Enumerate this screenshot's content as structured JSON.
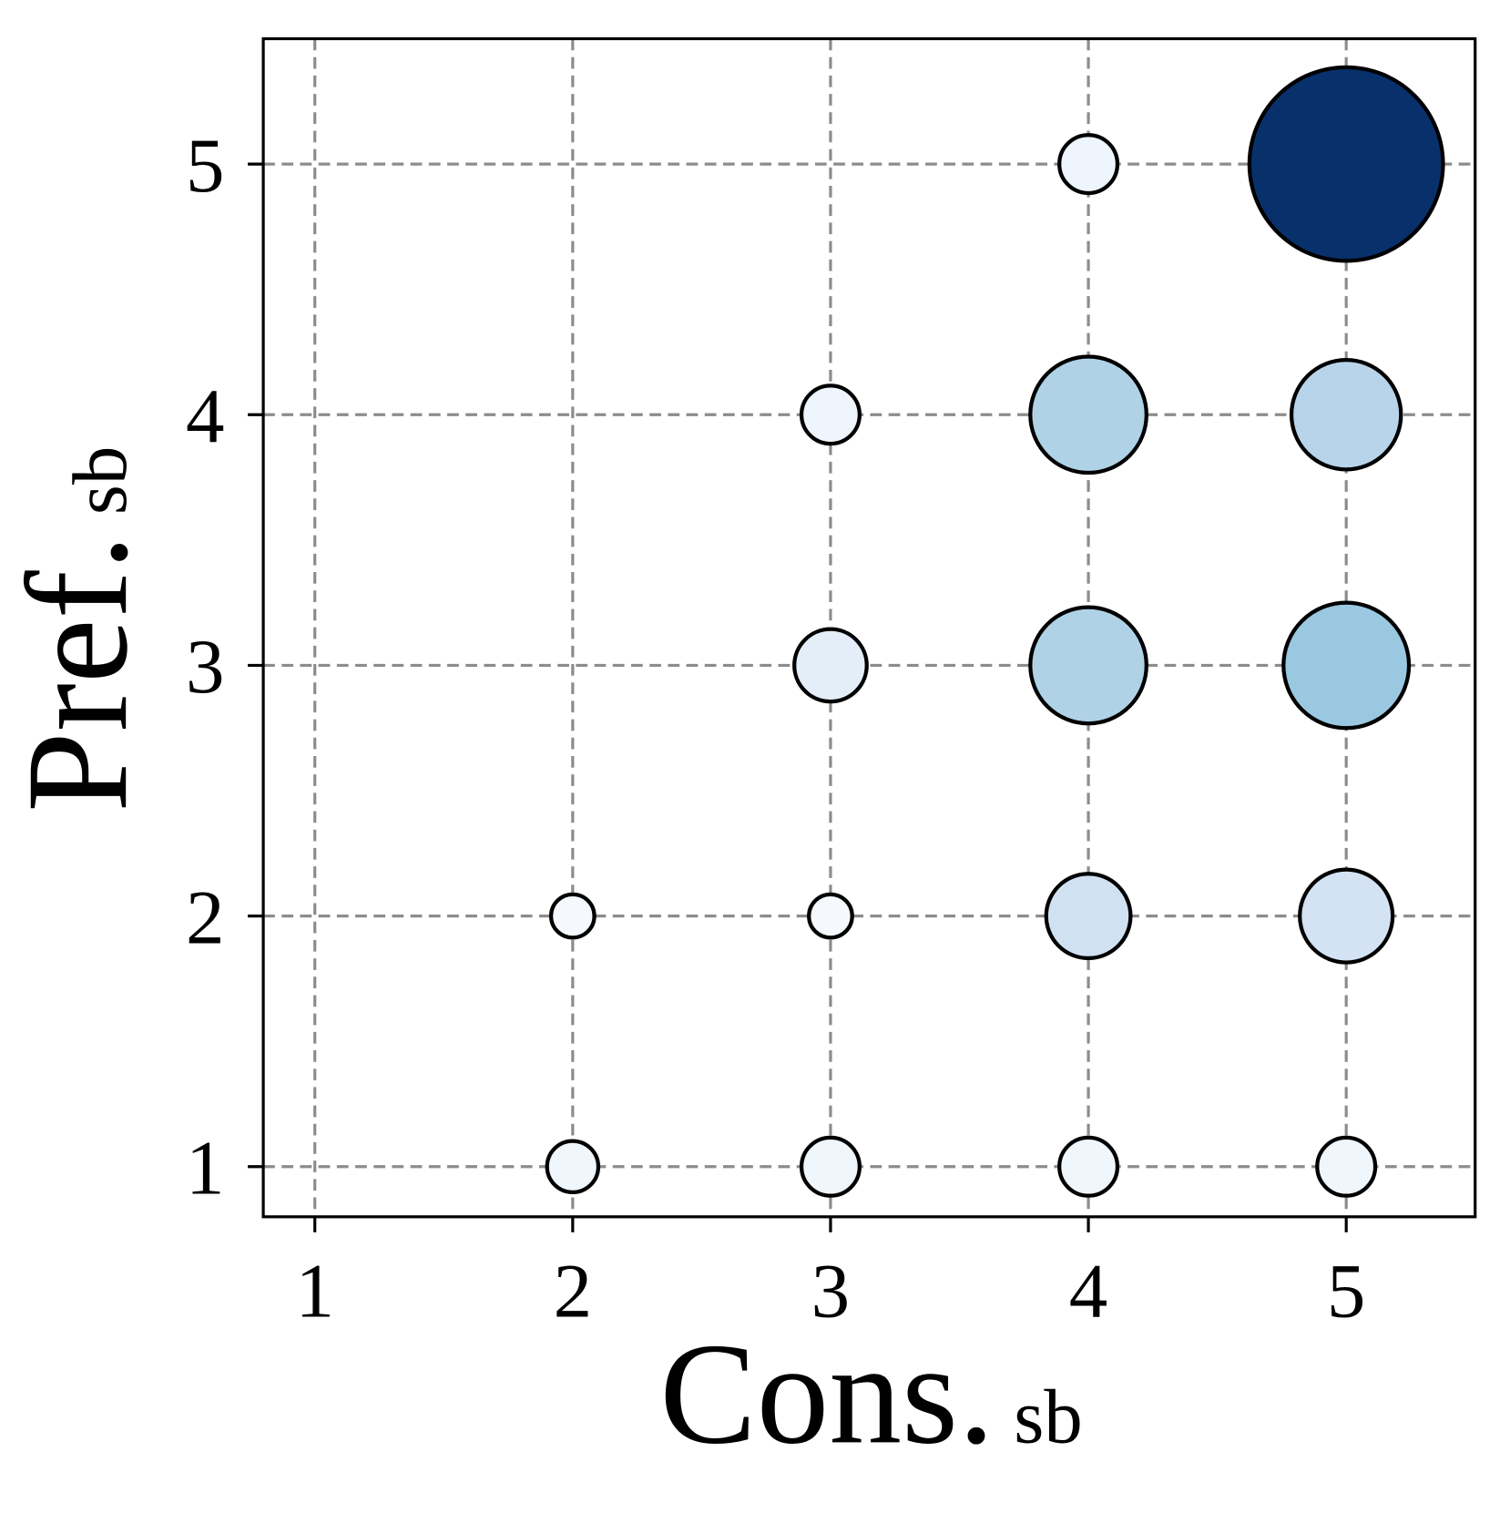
{
  "chart_data": {
    "type": "scatter",
    "x": [
      4,
      5,
      3,
      4,
      5,
      3,
      4,
      5,
      2,
      3,
      4,
      5,
      2,
      3,
      4,
      5
    ],
    "y": [
      5,
      5,
      4,
      4,
      4,
      3,
      3,
      3,
      2,
      2,
      2,
      2,
      1,
      1,
      1,
      1
    ],
    "sizes": [
      9,
      100,
      9,
      36,
      32,
      14,
      36,
      42,
      5,
      5,
      19,
      23,
      7,
      9,
      9,
      9
    ],
    "colors": [
      "#eef5fc",
      "#08306b",
      "#eef5fc",
      "#b0d2e7",
      "#b7d4ea",
      "#e3eef9",
      "#b0d2e7",
      "#9ac8e0",
      "#f5f9fe",
      "#f5f9fe",
      "#d0e1f2",
      "#d3e3f3",
      "#eff6fc",
      "#eff6fc",
      "#eff6fc",
      "#eff6fc"
    ],
    "xlim": [
      0.8,
      5.5
    ],
    "ylim": [
      0.8,
      5.5
    ],
    "xticks": [
      1,
      2,
      3,
      4,
      5
    ],
    "yticks": [
      1,
      2,
      3,
      4,
      5
    ],
    "xlabel": {
      "main": "Cons.",
      "sub": "sb"
    },
    "ylabel": {
      "main": "Pref.",
      "sub": "sb"
    },
    "grid": true
  }
}
